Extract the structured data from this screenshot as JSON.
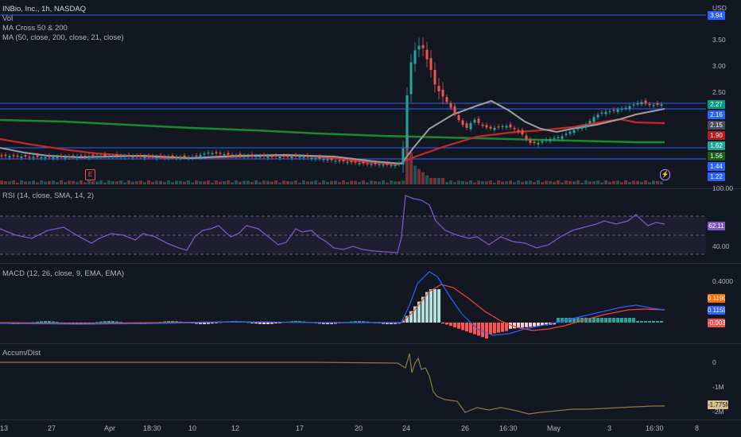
{
  "symbol_title": "INBio, Inc., 1h, NASDAQ",
  "currency": "USD",
  "legends": {
    "vol": "Vol",
    "ma_cross": "MA Cross 50 & 200",
    "ma": "MA (50, close, 200, close, 21, close)",
    "rsi": "RSI (14, close, SMA, 14, 2)",
    "macd": "MACD (12, 26, close, 9, EMA, EMA)",
    "accum": "Accum/Dist"
  },
  "price_axis": {
    "ticks": [
      "3.50",
      "3.00",
      "2.50"
    ],
    "badges": [
      {
        "label": "3.94",
        "color": "#2962ff"
      },
      {
        "label": "2.27",
        "color": "#089981"
      },
      {
        "label": "2.16",
        "color": "#2962ff"
      },
      {
        "label": "2.15",
        "color": "#4a4e59"
      },
      {
        "label": "1.90",
        "color": "#b71c1c"
      },
      {
        "label": "1.62",
        "color": "#26a69a"
      },
      {
        "label": "1.56",
        "color": "#1b5e20"
      },
      {
        "label": "1.44",
        "color": "#2962ff"
      },
      {
        "label": "1.22",
        "color": "#2962ff"
      }
    ]
  },
  "rsi_axis": {
    "ticks": [
      "100.00",
      "40.00"
    ],
    "badge": "62.11",
    "badge_color": "#7e57c2"
  },
  "macd_axis": {
    "ticks": [
      "0.4000"
    ],
    "badges": [
      {
        "label": "0.1190",
        "color": "#ff6d00"
      },
      {
        "label": "0.1159",
        "color": "#2962ff"
      },
      {
        "label": "-0.0031",
        "color": "#ef5350"
      }
    ]
  },
  "ad_axis": {
    "ticks": [
      "0",
      "-1M"
    ],
    "badge": "-1.775M",
    "badge_color": "#d7c08c",
    "partial": "-2M"
  },
  "x_axis": [
    "13",
    "27",
    "Apr",
    "18:30",
    "10",
    "12",
    "17",
    "20",
    "24",
    "26",
    "16:30",
    "May",
    "3",
    "16:30",
    "8"
  ],
  "events": {
    "earnings": "E",
    "dividend": "⚡"
  },
  "colors": {
    "up": "#26a69a",
    "down": "#ef5350",
    "ma50": "#9e9e9e",
    "ma200": "#1b8a2f",
    "ma21": "#c62828",
    "rsi": "#7e57c2",
    "macd": "#2962ff",
    "signal": "#f44336",
    "ad": "#8d7b42",
    "hline": "#2962ff"
  }
}
